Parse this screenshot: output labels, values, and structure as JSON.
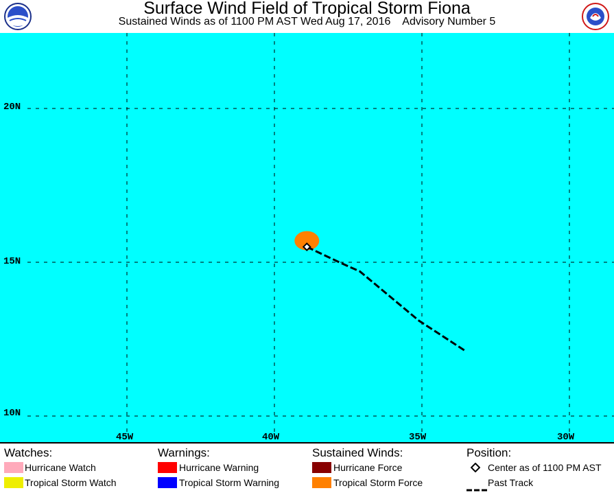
{
  "header": {
    "title": "Surface Wind Field of Tropical Storm Fiona",
    "subtitle": "Sustained Winds as of 1100 PM AST Wed Aug 17, 2016    Advisory Number 5",
    "left_logo_icon": "noaa-logo-icon",
    "right_logo_icon": "nws-logo-icon"
  },
  "map": {
    "background_color": "#00ffff",
    "lat_labels": [
      "20N",
      "15N",
      "10N"
    ],
    "lon_labels": [
      "45W",
      "40W",
      "35W",
      "30W"
    ],
    "wind_field_color": "#ff8000",
    "center_position": {
      "lat": 15.5,
      "lon": -38.9
    },
    "past_track": [
      {
        "lat": 15.5,
        "lon": -38.9
      },
      {
        "lat": 15.0,
        "lon": -37.8
      },
      {
        "lat": 14.7,
        "lon": -37.1
      },
      {
        "lat": 13.9,
        "lon": -36.1
      },
      {
        "lat": 13.1,
        "lon": -35.1
      },
      {
        "lat": 12.1,
        "lon": -33.5
      }
    ]
  },
  "legend": {
    "watches": {
      "heading": "Watches:",
      "items": [
        {
          "label": "Hurricane Watch",
          "color": "#ffaabb"
        },
        {
          "label": "Tropical Storm Watch",
          "color": "#eeee00"
        }
      ]
    },
    "warnings": {
      "heading": "Warnings:",
      "items": [
        {
          "label": "Hurricane Warning",
          "color": "#ff0000"
        },
        {
          "label": "Tropical Storm Warning",
          "color": "#0000ff"
        }
      ]
    },
    "winds": {
      "heading": "Sustained Winds:",
      "items": [
        {
          "label": "Hurricane Force",
          "color": "#880000"
        },
        {
          "label": "Tropical Storm Force",
          "color": "#ff8000"
        }
      ]
    },
    "position": {
      "heading": "Position:",
      "center_label": "Center as of 1100 PM AST",
      "track_label": "Past Track"
    }
  }
}
